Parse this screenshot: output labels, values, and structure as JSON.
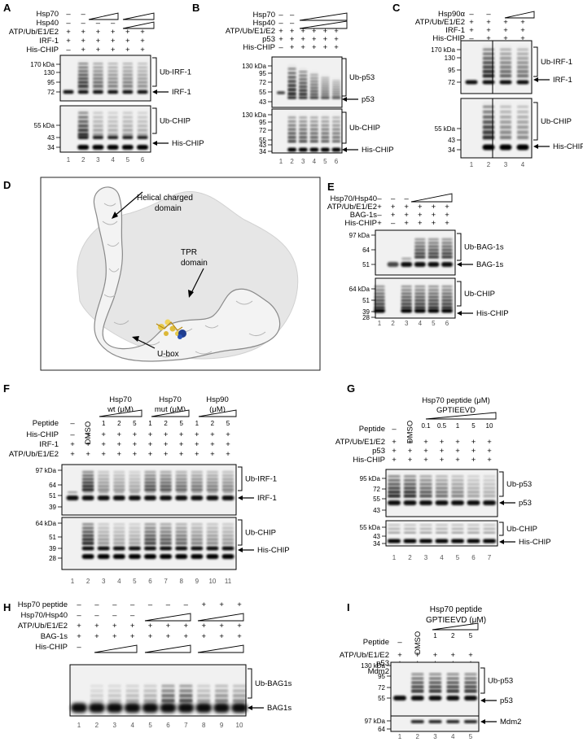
{
  "panels": {
    "A": {
      "label": "A",
      "rows": [
        {
          "name": "Hsp70",
          "cells": [
            "–",
            "–",
            "",
            "",
            "",
            ""
          ]
        },
        {
          "name": "Hsp40",
          "cells": [
            "–",
            "–",
            "–",
            "–",
            "",
            ""
          ]
        },
        {
          "name": "ATP/Ub/E1/E2",
          "cells": [
            "+",
            "+",
            "+",
            "+",
            "+",
            "+"
          ]
        },
        {
          "name": "IRF-1",
          "cells": [
            "+",
            "+",
            "+",
            "+",
            "+",
            "+"
          ]
        },
        {
          "name": "His-CHIP",
          "cells": [
            "–",
            "+",
            "+",
            "+",
            "+",
            "+"
          ]
        }
      ],
      "blot1_markers": [
        "170 kDa",
        "130",
        "95",
        "72"
      ],
      "blot2_markers": [
        "55 kDa",
        "43",
        "34"
      ],
      "ub_band": "Ub-IRF-1",
      "band": "IRF-1",
      "ub_chip": "Ub-CHIP",
      "his_chip": "His-CHIP",
      "lanes": [
        "1",
        "2",
        "3",
        "4",
        "5",
        "6"
      ]
    },
    "B": {
      "label": "B",
      "rows": [
        {
          "name": "Hsp70",
          "cells": [
            "–",
            "–",
            "",
            "",
            "",
            ""
          ]
        },
        {
          "name": "Hsp40",
          "cells": [
            "–",
            "–",
            "",
            "",
            "",
            ""
          ]
        },
        {
          "name": "ATP/Ub/E1/E2",
          "cells": [
            "+",
            "+",
            "+",
            "+",
            "+",
            "+"
          ]
        },
        {
          "name": "p53",
          "cells": [
            "+",
            "+",
            "+",
            "+",
            "+",
            "+"
          ]
        },
        {
          "name": "His-CHIP",
          "cells": [
            "–",
            "+",
            "+",
            "+",
            "+",
            "+"
          ]
        }
      ],
      "blot1_markers": [
        "130 kDa",
        "95",
        "72",
        "55",
        "43"
      ],
      "blot2_markers": [
        "130 kDa",
        "95",
        "72",
        "55",
        "43",
        "34"
      ],
      "ub_band": "Ub-p53",
      "band": "p53",
      "ub_chip": "Ub-CHIP",
      "his_chip": "His-CHIP",
      "lanes": [
        "1",
        "2",
        "3",
        "4",
        "5",
        "6"
      ]
    },
    "C": {
      "label": "C",
      "rows": [
        {
          "name": "Hsp90α",
          "cells": [
            "–",
            "–",
            "",
            ""
          ]
        },
        {
          "name": "ATP/Ub/E1/E2",
          "cells": [
            "+",
            "+",
            "+",
            "+"
          ]
        },
        {
          "name": "IRF-1",
          "cells": [
            "+",
            "+",
            "+",
            "+"
          ]
        },
        {
          "name": "His-CHIP",
          "cells": [
            "–",
            "+",
            "+",
            "+"
          ]
        }
      ],
      "blot1_markers": [
        "170 kDa",
        "130",
        "95",
        "72"
      ],
      "blot2_markers": [
        "55 kDa",
        "43",
        "34"
      ],
      "ub_band": "Ub-IRF-1",
      "band": "IRF-1",
      "ub_chip": "Ub-CHIP",
      "his_chip": "His-CHIP",
      "lanes": [
        "1",
        "2",
        "3",
        "4"
      ]
    },
    "D": {
      "label": "D",
      "helical": "Helical charged\ndomain",
      "helical_1": "Helical charged",
      "helical_2": "domain",
      "tpr_1": "TPR",
      "tpr_2": "domain",
      "ubox": "U-box"
    },
    "E": {
      "label": "E",
      "rows": [
        {
          "name": "Hsp70/Hsp40",
          "cells": [
            "–",
            "–",
            "–",
            "",
            "",
            ""
          ]
        },
        {
          "name": "ATP/Ub/E1/E2",
          "cells": [
            "+",
            "+",
            "+",
            "+",
            "+",
            "+"
          ]
        },
        {
          "name": "BAG-1s",
          "cells": [
            "–",
            "+",
            "+",
            "+",
            "+",
            "+"
          ]
        },
        {
          "name": "His-CHIP",
          "cells": [
            "+",
            "–",
            "+",
            "+",
            "+",
            "+"
          ]
        }
      ],
      "blot1_markers": [
        "97 kDa",
        "64",
        "51"
      ],
      "blot2_markers": [
        "64 kDa",
        "51",
        "39",
        "28"
      ],
      "ub_band": "Ub-BAG-1s",
      "band": "BAG-1s",
      "ub_chip": "Ub-CHIP",
      "his_chip": "His-CHIP",
      "lanes": [
        "1",
        "2",
        "3",
        "4",
        "5",
        "6"
      ]
    },
    "F": {
      "label": "F",
      "groups": [
        {
          "l1": "Hsp70",
          "l2": "wt (μM)"
        },
        {
          "l1": "Hsp70",
          "l2": "mut (μM)"
        },
        {
          "l1": "Hsp90",
          "l2": "(μM)"
        }
      ],
      "dmso": "DMSO",
      "conc": [
        "1",
        "2",
        "5",
        "1",
        "2",
        "5",
        "1",
        "2",
        "5"
      ],
      "peptide_label": "Peptide",
      "peptide_cells": [
        "–"
      ],
      "rows": [
        {
          "name": "His-CHIP",
          "cells": [
            "–",
            "+",
            "+",
            "+",
            "+",
            "+",
            "+",
            "+",
            "+",
            "+",
            "+"
          ]
        },
        {
          "name": "IRF-1",
          "cells": [
            "+",
            "+",
            "+",
            "+",
            "+",
            "+",
            "+",
            "+",
            "+",
            "+",
            "+"
          ]
        },
        {
          "name": "ATP/Ub/E1/E2",
          "cells": [
            "+",
            "+",
            "+",
            "+",
            "+",
            "+",
            "+",
            "+",
            "+",
            "+",
            "+"
          ]
        }
      ],
      "blot1_markers": [
        "97 kDa",
        "64",
        "51",
        "39"
      ],
      "blot2_markers": [
        "64 kDa",
        "51",
        "39",
        "28"
      ],
      "ub_band": "Ub-IRF-1",
      "band": "IRF-1",
      "ub_chip": "Ub-CHIP",
      "his_chip": "His-CHIP",
      "lanes": [
        "1",
        "2",
        "3",
        "4",
        "5",
        "6",
        "7",
        "8",
        "9",
        "10",
        "11"
      ]
    },
    "G": {
      "label": "G",
      "title_1": "Hsp70 peptide (μM)",
      "title_2": "GPTIEEVD",
      "dmso": "DMSO",
      "conc": [
        "0.1",
        "0.5",
        "1",
        "5",
        "10"
      ],
      "peptide_label": "Peptide",
      "peptide_cells": [
        "–"
      ],
      "rows": [
        {
          "name": "ATP/Ub/E1/E2",
          "cells": [
            "+",
            "+",
            "+",
            "+",
            "+",
            "+",
            "+"
          ]
        },
        {
          "name": "p53",
          "cells": [
            "+",
            "+",
            "+",
            "+",
            "+",
            "+",
            "+"
          ]
        },
        {
          "name": "His-CHIP",
          "cells": [
            "+",
            "+",
            "+",
            "+",
            "+",
            "+",
            "+"
          ]
        }
      ],
      "blot1_markers": [
        "95 kDa",
        "72",
        "55",
        "43"
      ],
      "blot2_markers": [
        "55 kDa",
        "43",
        "34"
      ],
      "ub_band": "Ub-p53",
      "band": "p53",
      "ub_chip": "Ub-CHIP",
      "his_chip": "His-CHIP",
      "lanes": [
        "1",
        "2",
        "3",
        "4",
        "5",
        "6",
        "7"
      ]
    },
    "H": {
      "label": "H",
      "rows": [
        {
          "name": "Hsp70 peptide",
          "cells": [
            "–",
            "–",
            "–",
            "–",
            "–",
            "–",
            "–",
            "+",
            "+",
            "+"
          ]
        },
        {
          "name": "Hsp70/Hsp40",
          "cells": [
            "–",
            "–",
            "–",
            "–",
            "",
            "",
            "",
            "",
            "",
            ""
          ]
        },
        {
          "name": "ATP/Ub/E1/E2",
          "cells": [
            "+",
            "+",
            "+",
            "+",
            "+",
            "+",
            "+",
            "+",
            "+",
            "+"
          ]
        },
        {
          "name": "BAG-1s",
          "cells": [
            "+",
            "+",
            "+",
            "+",
            "+",
            "+",
            "+",
            "+",
            "+",
            "+"
          ]
        },
        {
          "name": "His-CHIP",
          "cells": [
            "–",
            "",
            "",
            "",
            "",
            "",
            "",
            "",
            "",
            ""
          ]
        }
      ],
      "ub_band": "Ub-BAG1s",
      "band": "BAG1s",
      "lanes": [
        "1",
        "2",
        "3",
        "4",
        "5",
        "6",
        "7",
        "8",
        "9",
        "10"
      ]
    },
    "I": {
      "label": "I",
      "title_1": "Hsp70 peptide",
      "title_2": "GPTIEEVD (μM)",
      "dmso": "DMSO",
      "conc": [
        "1",
        "2",
        "5"
      ],
      "peptide_label": "Peptide",
      "peptide_cells": [
        "–"
      ],
      "rows": [
        {
          "name": "ATP/Ub/E1/E2",
          "cells": [
            "+",
            "+",
            "+",
            "+",
            "+"
          ]
        },
        {
          "name": "p53",
          "cells": [
            "+",
            "+",
            "+",
            "+",
            "+"
          ]
        },
        {
          "name": "Mdm2",
          "cells": [
            "–",
            "+",
            "+",
            "+",
            "+"
          ]
        }
      ],
      "blot1_markers": [
        "130 kDa",
        "95",
        "72",
        "55"
      ],
      "blot2_markers": [
        "97 kDa",
        "64"
      ],
      "ub_band": "Ub-p53",
      "band": "p53",
      "mdm2": "Mdm2",
      "lanes": [
        "1",
        "2",
        "3",
        "4",
        "5"
      ]
    }
  }
}
